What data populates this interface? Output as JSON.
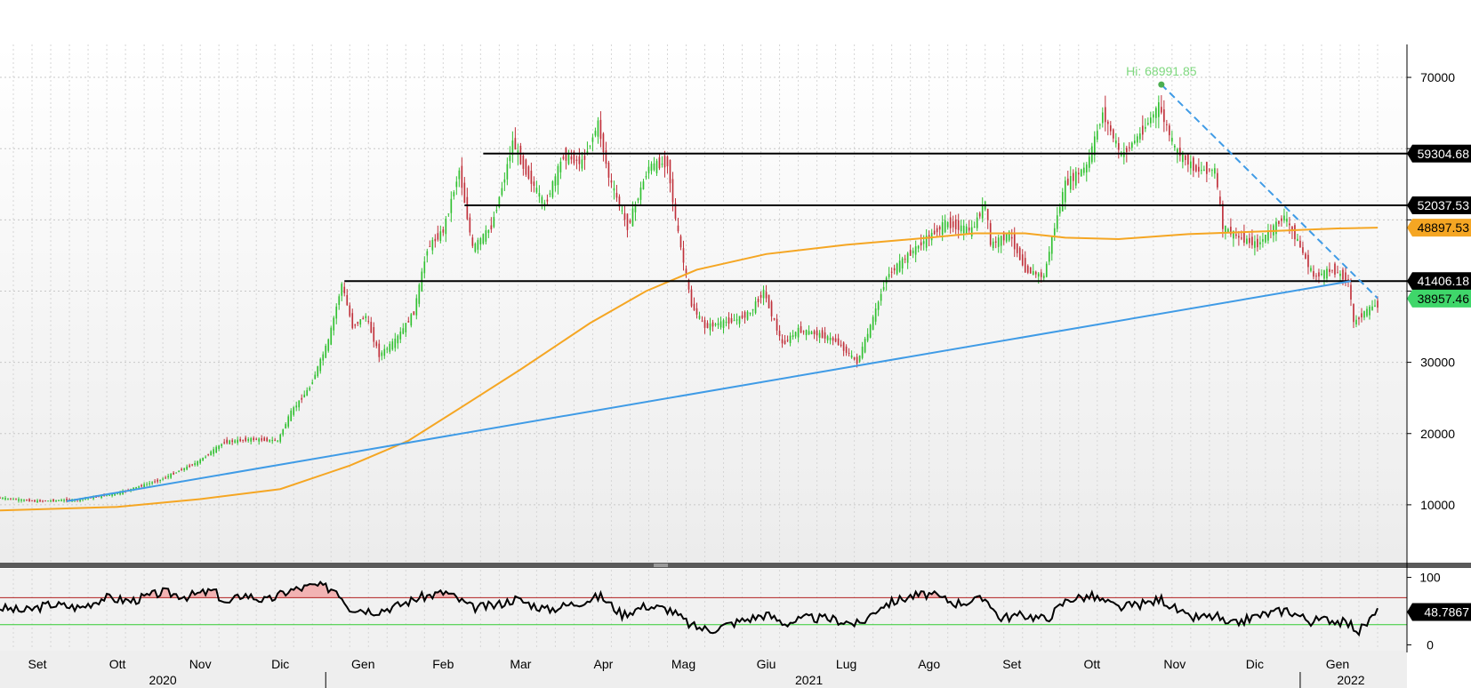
{
  "chart_data": [
    {
      "type": "candlestick",
      "annotation": {
        "text": "Hi: 68991.85",
        "date": "2021-11-10",
        "value": 68991.85
      },
      "y_ticks": [
        10000,
        20000,
        30000,
        40000,
        50000,
        60000,
        70000
      ],
      "y_tick_labels": [
        "10000",
        "20000",
        "30000",
        "",
        "",
        "",
        "70000"
      ],
      "ylim": [
        2000,
        74000
      ],
      "xlim": [
        "2020-09-01",
        "2022-02-02"
      ],
      "x_month_labels": [
        {
          "date": "2020-09-15",
          "label": "Set"
        },
        {
          "date": "2020-10-15",
          "label": "Ott"
        },
        {
          "date": "2020-11-15",
          "label": "Nov"
        },
        {
          "date": "2020-12-15",
          "label": "Dic"
        },
        {
          "date": "2021-01-15",
          "label": "Gen"
        },
        {
          "date": "2021-02-14",
          "label": "Feb"
        },
        {
          "date": "2021-03-15",
          "label": "Mar"
        },
        {
          "date": "2021-04-15",
          "label": "Apr"
        },
        {
          "date": "2021-05-15",
          "label": "Mag"
        },
        {
          "date": "2021-06-15",
          "label": "Giu"
        },
        {
          "date": "2021-07-15",
          "label": "Lug"
        },
        {
          "date": "2021-08-15",
          "label": "Ago"
        },
        {
          "date": "2021-09-15",
          "label": "Set"
        },
        {
          "date": "2021-10-15",
          "label": "Ott"
        },
        {
          "date": "2021-11-15",
          "label": "Nov"
        },
        {
          "date": "2021-12-15",
          "label": "Dic"
        },
        {
          "date": "2022-01-15",
          "label": "Gen"
        }
      ],
      "x_year_labels": [
        {
          "date": "2020-11-01",
          "label": "2020"
        },
        {
          "date": "2021-07-01",
          "label": "2021"
        },
        {
          "date": "2022-01-20",
          "label": "2022"
        }
      ],
      "price_points": [
        [
          "2020-09-01",
          11000
        ],
        [
          "2020-09-15",
          10500
        ],
        [
          "2020-10-01",
          10700
        ],
        [
          "2020-10-15",
          11500
        ],
        [
          "2020-11-01",
          13500
        ],
        [
          "2020-11-15",
          16000
        ],
        [
          "2020-11-25",
          18800
        ],
        [
          "2020-12-05",
          19200
        ],
        [
          "2020-12-15",
          19000
        ],
        [
          "2020-12-20",
          23000
        ],
        [
          "2020-12-27",
          26500
        ],
        [
          "2021-01-03",
          33000
        ],
        [
          "2021-01-08",
          41000
        ],
        [
          "2021-01-12",
          35000
        ],
        [
          "2021-01-17",
          36500
        ],
        [
          "2021-01-22",
          31000
        ],
        [
          "2021-01-28",
          33000
        ],
        [
          "2021-02-04",
          37000
        ],
        [
          "2021-02-09",
          46000
        ],
        [
          "2021-02-15",
          48500
        ],
        [
          "2021-02-21",
          57000
        ],
        [
          "2021-02-26",
          46000
        ],
        [
          "2021-03-05",
          49000
        ],
        [
          "2021-03-10",
          56000
        ],
        [
          "2021-03-13",
          61000
        ],
        [
          "2021-03-17",
          57500
        ],
        [
          "2021-03-25",
          52000
        ],
        [
          "2021-04-01",
          59000
        ],
        [
          "2021-04-08",
          58000
        ],
        [
          "2021-04-14",
          63500
        ],
        [
          "2021-04-18",
          56000
        ],
        [
          "2021-04-25",
          49000
        ],
        [
          "2021-05-03",
          57500
        ],
        [
          "2021-05-10",
          58000
        ],
        [
          "2021-05-13",
          50000
        ],
        [
          "2021-05-19",
          38000
        ],
        [
          "2021-05-24",
          35000
        ],
        [
          "2021-05-30",
          35500
        ],
        [
          "2021-06-05",
          36000
        ],
        [
          "2021-06-10",
          37000
        ],
        [
          "2021-06-15",
          40000
        ],
        [
          "2021-06-22",
          32500
        ],
        [
          "2021-06-28",
          34500
        ],
        [
          "2021-07-05",
          34000
        ],
        [
          "2021-07-12",
          33000
        ],
        [
          "2021-07-20",
          30000
        ],
        [
          "2021-07-25",
          35000
        ],
        [
          "2021-07-31",
          42000
        ],
        [
          "2021-08-08",
          45000
        ],
        [
          "2021-08-14",
          47000
        ],
        [
          "2021-08-22",
          49500
        ],
        [
          "2021-09-01",
          48500
        ],
        [
          "2021-09-06",
          52500
        ],
        [
          "2021-09-08",
          46500
        ],
        [
          "2021-09-15",
          48000
        ],
        [
          "2021-09-21",
          43000
        ],
        [
          "2021-09-28",
          42000
        ],
        [
          "2021-10-01",
          47500
        ],
        [
          "2021-10-06",
          55000
        ],
        [
          "2021-10-14",
          57500
        ],
        [
          "2021-10-20",
          65000
        ],
        [
          "2021-10-27",
          59000
        ],
        [
          "2021-11-03",
          62000
        ],
        [
          "2021-11-10",
          66000
        ],
        [
          "2021-11-16",
          60000
        ],
        [
          "2021-11-24",
          57000
        ],
        [
          "2021-12-01",
          57000
        ],
        [
          "2021-12-04",
          49000
        ],
        [
          "2021-12-10",
          47500
        ],
        [
          "2021-12-17",
          46500
        ],
        [
          "2021-12-27",
          50500
        ],
        [
          "2022-01-01",
          47000
        ],
        [
          "2022-01-07",
          42000
        ],
        [
          "2022-01-14",
          43000
        ],
        [
          "2022-01-20",
          41500
        ],
        [
          "2022-01-22",
          35500
        ],
        [
          "2022-01-26",
          37000
        ],
        [
          "2022-01-30",
          38000
        ]
      ],
      "moving_average": [
        [
          "2020-09-01",
          9200
        ],
        [
          "2020-10-15",
          9700
        ],
        [
          "2020-11-15",
          10800
        ],
        [
          "2020-12-15",
          12200
        ],
        [
          "2021-01-10",
          15500
        ],
        [
          "2021-02-01",
          19000
        ],
        [
          "2021-02-20",
          23500
        ],
        [
          "2021-03-15",
          29000
        ],
        [
          "2021-04-10",
          35500
        ],
        [
          "2021-05-01",
          40000
        ],
        [
          "2021-05-20",
          43000
        ],
        [
          "2021-06-15",
          45200
        ],
        [
          "2021-07-15",
          46500
        ],
        [
          "2021-08-15",
          47500
        ],
        [
          "2021-09-01",
          48100
        ],
        [
          "2021-09-20",
          48100
        ],
        [
          "2021-10-05",
          47500
        ],
        [
          "2021-10-25",
          47300
        ],
        [
          "2021-11-20",
          48000
        ],
        [
          "2021-12-20",
          48400
        ],
        [
          "2022-01-15",
          48800
        ],
        [
          "2022-01-30",
          48900
        ]
      ],
      "trendlines": [
        {
          "from": [
            "2020-09-26",
            10500
          ],
          "to": [
            "2022-01-20",
            41406.18
          ],
          "style": "solid"
        },
        {
          "from": [
            "2021-11-10",
            68991.85
          ],
          "to": [
            "2022-01-30",
            39000
          ],
          "style": "dashed"
        }
      ],
      "horizontal_levels": [
        {
          "value": 59304.68,
          "label": "59304.68",
          "from": "2021-03-01",
          "color": "#000000"
        },
        {
          "value": 52037.53,
          "label": "52037.53",
          "from": "2021-02-22",
          "color": "#000000"
        },
        {
          "value": 41406.18,
          "label": "41406.18",
          "from": "2021-01-08",
          "color": "#000000"
        }
      ],
      "last_value_tags": [
        {
          "value": 48897.53,
          "label": "48897.53",
          "color": "#f5a623",
          "series": "moving_average"
        },
        {
          "value": 38957.46,
          "label": "38957.46",
          "color": "#3fd66a",
          "series": "price"
        }
      ]
    },
    {
      "type": "line",
      "y_ticks": [
        0,
        100
      ],
      "y_tick_labels": [
        "0",
        "100"
      ],
      "ylim": [
        -6,
        110
      ],
      "upper_band": 70,
      "lower_band": 30,
      "last_value": {
        "value": 48.7867,
        "label": "48.7867"
      },
      "rsi_points": [
        [
          "2020-09-01",
          55
        ],
        [
          "2020-09-10",
          50
        ],
        [
          "2020-09-20",
          60
        ],
        [
          "2020-10-01",
          55
        ],
        [
          "2020-10-10",
          70
        ],
        [
          "2020-10-20",
          65
        ],
        [
          "2020-11-01",
          78
        ],
        [
          "2020-11-10",
          72
        ],
        [
          "2020-11-20",
          80
        ],
        [
          "2020-11-25",
          60
        ],
        [
          "2020-12-01",
          75
        ],
        [
          "2020-12-10",
          65
        ],
        [
          "2020-12-18",
          80
        ],
        [
          "2020-12-28",
          88
        ],
        [
          "2021-01-05",
          82
        ],
        [
          "2021-01-10",
          55
        ],
        [
          "2021-01-20",
          50
        ],
        [
          "2021-01-28",
          58
        ],
        [
          "2021-02-05",
          70
        ],
        [
          "2021-02-15",
          78
        ],
        [
          "2021-02-25",
          55
        ],
        [
          "2021-03-05",
          58
        ],
        [
          "2021-03-13",
          68
        ],
        [
          "2021-03-25",
          52
        ],
        [
          "2021-04-05",
          62
        ],
        [
          "2021-04-14",
          72
        ],
        [
          "2021-04-22",
          45
        ],
        [
          "2021-05-01",
          58
        ],
        [
          "2021-05-10",
          52
        ],
        [
          "2021-05-18",
          28
        ],
        [
          "2021-05-25",
          22
        ],
        [
          "2021-06-05",
          35
        ],
        [
          "2021-06-15",
          45
        ],
        [
          "2021-06-22",
          32
        ],
        [
          "2021-07-01",
          40
        ],
        [
          "2021-07-10",
          38
        ],
        [
          "2021-07-20",
          30
        ],
        [
          "2021-07-28",
          58
        ],
        [
          "2021-08-08",
          72
        ],
        [
          "2021-08-15",
          75
        ],
        [
          "2021-08-25",
          62
        ],
        [
          "2021-09-06",
          68
        ],
        [
          "2021-09-10",
          40
        ],
        [
          "2021-09-20",
          44
        ],
        [
          "2021-09-28",
          38
        ],
        [
          "2021-10-06",
          68
        ],
        [
          "2021-10-15",
          72
        ],
        [
          "2021-10-25",
          55
        ],
        [
          "2021-11-05",
          62
        ],
        [
          "2021-11-10",
          68
        ],
        [
          "2021-11-20",
          40
        ],
        [
          "2021-12-01",
          42
        ],
        [
          "2021-12-05",
          28
        ],
        [
          "2021-12-15",
          42
        ],
        [
          "2021-12-27",
          52
        ],
        [
          "2022-01-05",
          35
        ],
        [
          "2022-01-12",
          38
        ],
        [
          "2022-01-20",
          30
        ],
        [
          "2022-01-23",
          20
        ],
        [
          "2022-01-30",
          48.7867
        ]
      ]
    }
  ]
}
